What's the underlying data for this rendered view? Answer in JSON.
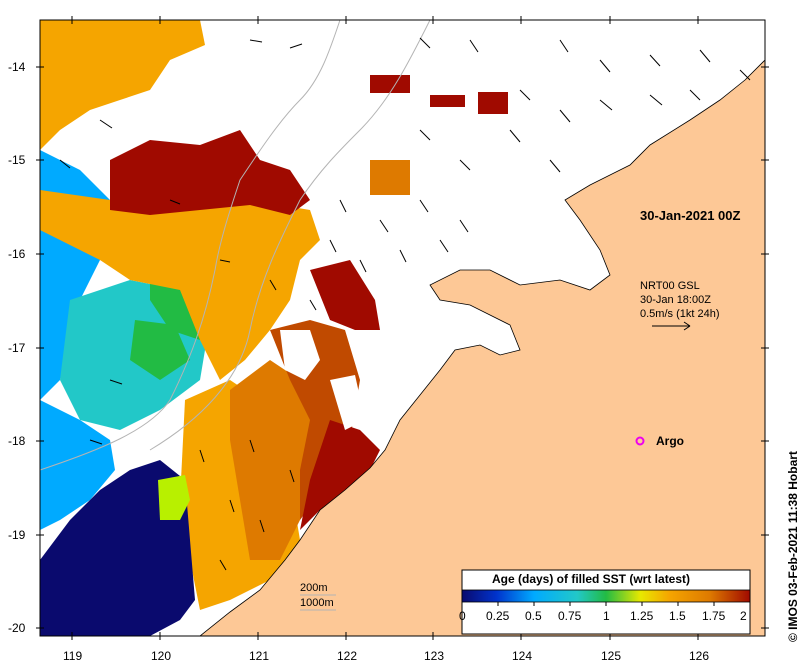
{
  "map": {
    "timestamp_label": "30-Jan-2021 00Z",
    "vector_legend": {
      "line1": "NRT00 GSL",
      "line2": "30-Jan 18:00Z",
      "line3": "0.5m/s (1kt 24h)"
    },
    "argo_label": "Argo",
    "isobaths": {
      "shallow": "200m",
      "deep": "1000m"
    },
    "credit": "© IMOS 03-Feb-2021 11:38 Hobart",
    "lat_ticks": [
      "-14",
      "-15",
      "-16",
      "-17",
      "-18",
      "-19",
      "-20"
    ],
    "lon_ticks": [
      "119",
      "120",
      "121",
      "122",
      "123",
      "124",
      "125",
      "126"
    ],
    "colorbar": {
      "title": "Age (days) of filled SST (wrt latest)",
      "tick_labels": [
        "0",
        "0.25",
        "0.5",
        "0.75",
        "1",
        "1.25",
        "1.5",
        "1.75",
        "2"
      ]
    },
    "colors": {
      "land": "#fdc896",
      "navy": "#0a0a6e",
      "blue": "#00aaff",
      "cyan": "#22c8c8",
      "green": "#22bb44",
      "yellow": "#e8e800",
      "orange": "#f5a500",
      "dark_orange": "#de7a00",
      "rust": "#c04a00",
      "dark_red": "#a00a00",
      "argo": "#ee00ee"
    }
  }
}
